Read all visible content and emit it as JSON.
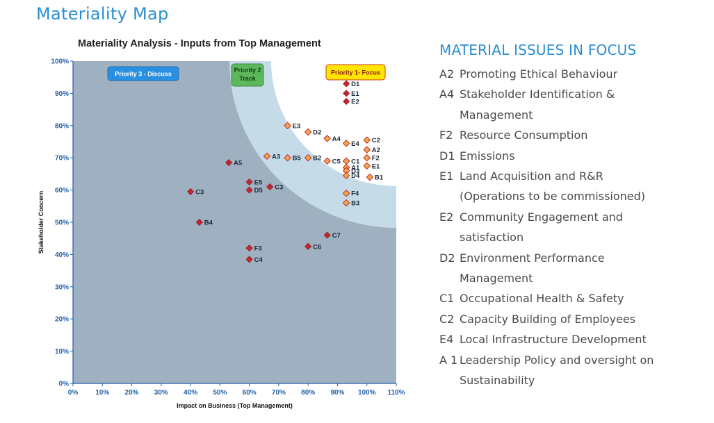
{
  "page_title": "Materiality Map",
  "side_title": "MATERIAL ISSUES IN FOCUS",
  "issues": [
    {
      "code": "A2",
      "text": "Promoting Ethical Behaviour"
    },
    {
      "code": "A4",
      "text": "Stakeholder Identification & Management"
    },
    {
      "code": "F2",
      "text": "Resource Consumption"
    },
    {
      "code": "D1",
      "text": "Emissions"
    },
    {
      "code": "E1",
      "text": "Land Acquisition and R&R (Operations to be commissioned)"
    },
    {
      "code": "E2",
      "text": "Community Engagement and satisfaction"
    },
    {
      "code": "D2",
      "text": "Environment Performance Management"
    },
    {
      "code": "C1",
      "text": "Occupational Health & Safety"
    },
    {
      "code": "C2",
      "text": "Capacity Building of Employees"
    },
    {
      "code": "E4",
      "text": "Local Infrastructure Development"
    },
    {
      "code": "A 1",
      "text": "Leadership Policy and oversight on Sustainability"
    }
  ],
  "chart_data": {
    "type": "scatter",
    "title": "Materiality Analysis - Inputs from Top Management",
    "xlabel": "Impact on Business (Top Management)",
    "ylabel": "Stakeholder Concern",
    "xlim": [
      0,
      110
    ],
    "ylim": [
      0,
      100
    ],
    "x_ticks": [
      "0%",
      "10%",
      "20%",
      "30%",
      "40%",
      "50%",
      "60%",
      "70%",
      "80%",
      "90%",
      "100%",
      "110%"
    ],
    "y_ticks": [
      "0%",
      "10%",
      "20%",
      "30%",
      "40%",
      "50%",
      "60%",
      "70%",
      "80%",
      "90%",
      "100%"
    ],
    "grid": false,
    "zones": [
      {
        "label": "Priority 3 - Discuss",
        "color": "#9fb0c0",
        "badge_color": "#2a8fe0"
      },
      {
        "label": "Priority 2-Track",
        "color": "#c5dbe8",
        "badge_color": "#5cb85c"
      },
      {
        "label": "Priority 1- Focus",
        "color": "#ffffff",
        "badge_color": "#ffe600"
      }
    ],
    "series": [
      {
        "name": "Priority 3 - Discuss",
        "color": "#c0282d",
        "points": [
          {
            "label": "A5",
            "x": 53,
            "y": 68.5
          },
          {
            "label": "C3",
            "x": 40,
            "y": 59.5
          },
          {
            "label": "B4",
            "x": 43,
            "y": 50
          },
          {
            "label": "E5",
            "x": 60,
            "y": 62.5
          },
          {
            "label": "D5",
            "x": 60,
            "y": 60
          },
          {
            "label": "C3",
            "x": 67,
            "y": 61
          },
          {
            "label": "F3",
            "x": 60,
            "y": 42
          },
          {
            "label": "C4",
            "x": 60,
            "y": 38.5
          },
          {
            "label": "C6",
            "x": 80,
            "y": 42.5
          },
          {
            "label": "C7",
            "x": 86.5,
            "y": 46
          },
          {
            "label": "D1",
            "x": 93,
            "y": 93
          },
          {
            "label": "E1",
            "x": 93,
            "y": 90
          },
          {
            "label": "E2",
            "x": 93,
            "y": 87.5
          }
        ]
      },
      {
        "name": "Priority 2-Track",
        "color": "#f2a84a",
        "points": [
          {
            "label": "E3",
            "x": 73,
            "y": 80
          },
          {
            "label": "D2",
            "x": 80,
            "y": 78
          },
          {
            "label": "A4",
            "x": 86.5,
            "y": 76
          },
          {
            "label": "E4",
            "x": 93,
            "y": 74.5
          },
          {
            "label": "C2",
            "x": 100,
            "y": 75.5
          },
          {
            "label": "A2",
            "x": 100,
            "y": 72.5
          },
          {
            "label": "F2",
            "x": 100,
            "y": 70
          },
          {
            "label": "E1",
            "x": 100,
            "y": 67.5
          },
          {
            "label": "A3",
            "x": 66,
            "y": 70.5
          },
          {
            "label": "B5",
            "x": 73,
            "y": 70
          },
          {
            "label": "B2",
            "x": 80,
            "y": 70
          },
          {
            "label": "C5",
            "x": 86.5,
            "y": 69
          },
          {
            "label": "C1",
            "x": 93,
            "y": 69
          },
          {
            "label": "A1",
            "x": 93,
            "y": 67
          },
          {
            "label": "D3",
            "x": 93,
            "y": 66
          },
          {
            "label": "D4",
            "x": 93,
            "y": 64.5
          },
          {
            "label": "B1",
            "x": 101,
            "y": 64
          },
          {
            "label": "F4",
            "x": 93,
            "y": 59
          },
          {
            "label": "B3",
            "x": 93,
            "y": 56
          }
        ]
      }
    ]
  }
}
